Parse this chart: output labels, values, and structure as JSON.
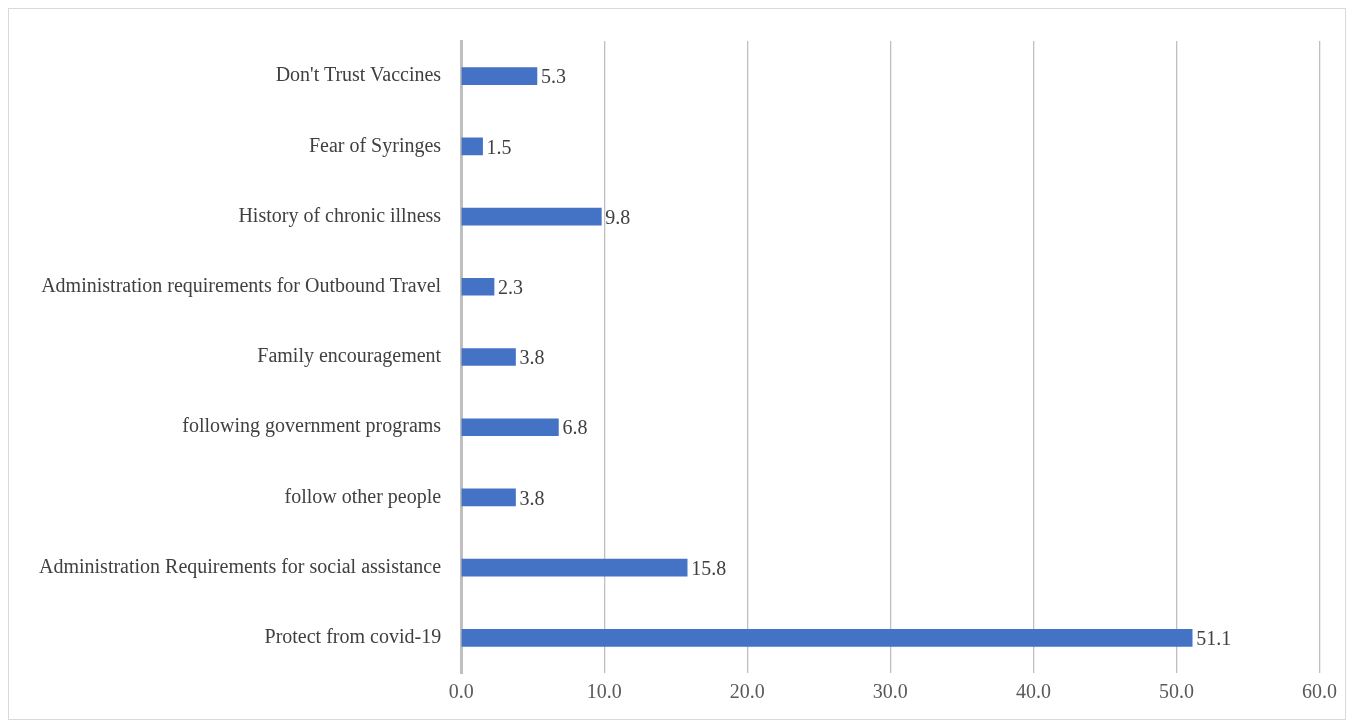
{
  "chart_data": {
    "type": "bar",
    "orientation": "horizontal",
    "categories": [
      "Don't Trust Vaccines",
      "Fear of Syringes",
      "History of chronic illness",
      "Administration requirements for Outbound Travel",
      "Family encouragement",
      "following government programs",
      "follow other people",
      "Administration Requirements for social assistance",
      "Protect from covid-19"
    ],
    "values": [
      5.3,
      1.5,
      9.8,
      2.3,
      3.8,
      6.8,
      3.8,
      15.8,
      51.1
    ],
    "color": "#4472c4",
    "xlim": [
      0,
      60
    ],
    "xticks": [
      {
        "value": 0,
        "label": "0.0"
      },
      {
        "value": 10,
        "label": "10.0"
      },
      {
        "value": 20,
        "label": "20.0"
      },
      {
        "value": 30,
        "label": "30.0"
      },
      {
        "value": 40,
        "label": "40.0"
      },
      {
        "value": 50,
        "label": "50.0"
      },
      {
        "value": 60,
        "label": "60.0"
      }
    ],
    "grid": "x",
    "data_labels": true,
    "legend": false
  }
}
